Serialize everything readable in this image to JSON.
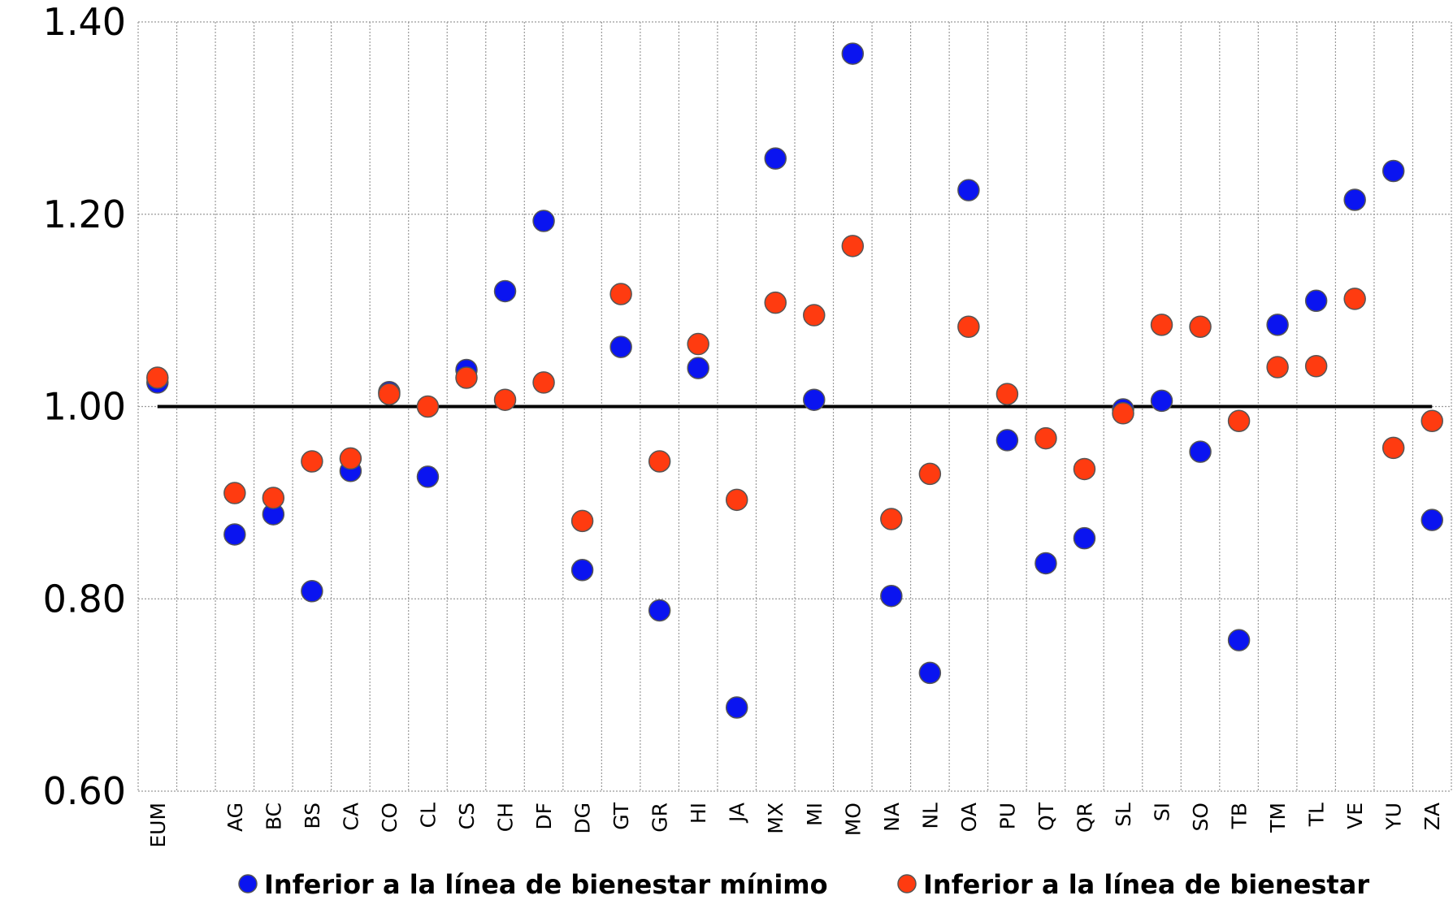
{
  "chart_data": {
    "type": "scatter",
    "categories": [
      "EUM",
      "",
      "AG",
      "BC",
      "BS",
      "CA",
      "CO",
      "CL",
      "CS",
      "CH",
      "DF",
      "DG",
      "GT",
      "GR",
      "HI",
      "JA",
      "MX",
      "MI",
      "MO",
      "NA",
      "NL",
      "OA",
      "PU",
      "QT",
      "QR",
      "SL",
      "SI",
      "SO",
      "TB",
      "TM",
      "TL",
      "VE",
      "YU",
      "ZA"
    ],
    "series": [
      {
        "name": "Inferior a la línea de bienestar mínimo",
        "color": "#0a14f0",
        "values": [
          1.025,
          null,
          0.867,
          0.888,
          0.808,
          0.933,
          1.015,
          0.927,
          1.038,
          1.12,
          1.193,
          0.83,
          1.062,
          0.788,
          1.04,
          0.687,
          1.258,
          1.007,
          1.367,
          0.803,
          0.723,
          1.225,
          0.965,
          0.837,
          0.863,
          0.997,
          1.006,
          0.953,
          0.757,
          1.085,
          1.11,
          1.215,
          1.245,
          0.882
        ]
      },
      {
        "name": "Inferior a la línea de bienestar",
        "color": "#ff3b10",
        "values": [
          1.03,
          null,
          0.91,
          0.905,
          0.943,
          0.946,
          1.013,
          1.0,
          1.03,
          1.007,
          1.025,
          0.881,
          1.117,
          0.943,
          1.065,
          0.903,
          1.108,
          1.095,
          1.167,
          0.883,
          0.93,
          1.083,
          1.013,
          0.967,
          0.935,
          0.993,
          1.085,
          1.083,
          0.985,
          1.041,
          1.042,
          1.112,
          0.957,
          0.985
        ]
      }
    ],
    "reference_line": 1.0,
    "yticks": [
      "0.60",
      "0.80",
      "1.00",
      "1.20",
      "1.40"
    ],
    "ylim": [
      0.6,
      1.4
    ],
    "grid": true,
    "legend_position": "bottom"
  }
}
